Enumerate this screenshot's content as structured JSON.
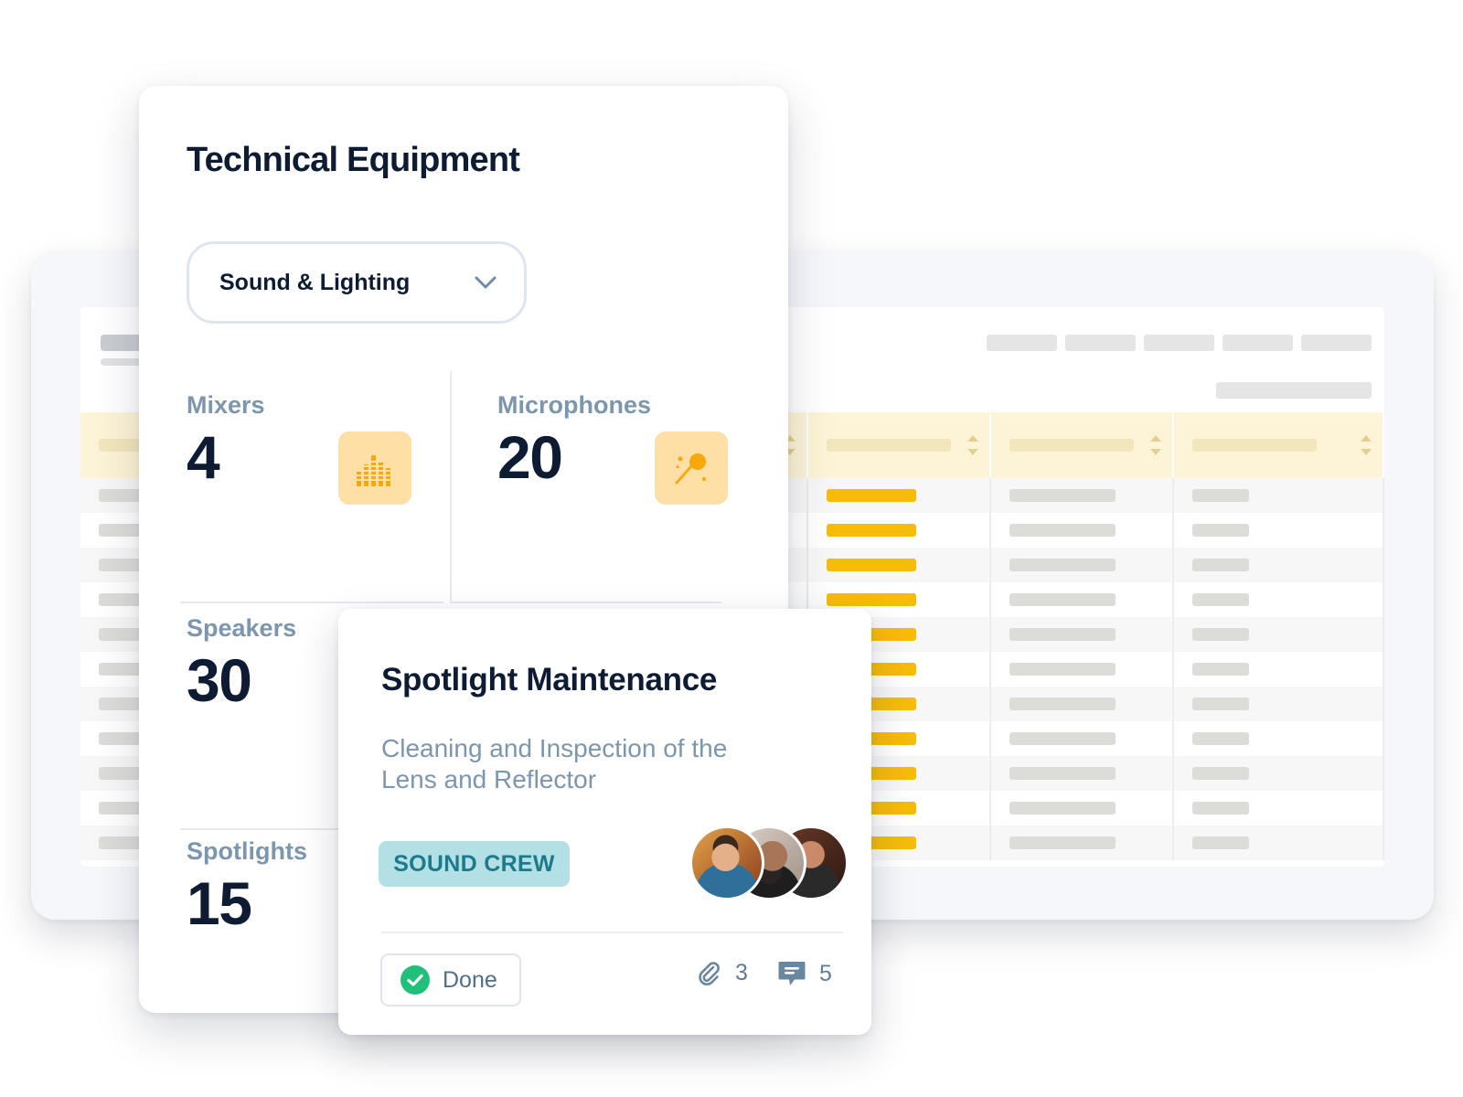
{
  "equipment": {
    "title": "Technical Equipment",
    "category_select": {
      "selected": "Sound & Lighting",
      "icon": "chevron-down-icon"
    },
    "stats": [
      {
        "label": "Mixers",
        "value": "4",
        "icon": "equalizer-icon"
      },
      {
        "label": "Microphones",
        "value": "20",
        "icon": "microphone-icon"
      },
      {
        "label": "Speakers",
        "value": "30"
      },
      {
        "label": "Spotlights",
        "value": "15"
      }
    ]
  },
  "task": {
    "title": "Spotlight Maintenance",
    "description": "Cleaning and Inspection of the Lens and Reflector",
    "tag": "SOUND CREW",
    "status": "Done",
    "attachments": "3",
    "comments": "5"
  },
  "colors": {
    "navy": "#0d1b33",
    "muted_blue": "#7c96ad",
    "icon_bg": "#fedfa6",
    "icon_fg": "#f7a80a",
    "tag_bg": "#b2e0e4",
    "tag_fg": "#1d7a8c",
    "success": "#21c07a",
    "table_accent": "#f7bb0a"
  }
}
